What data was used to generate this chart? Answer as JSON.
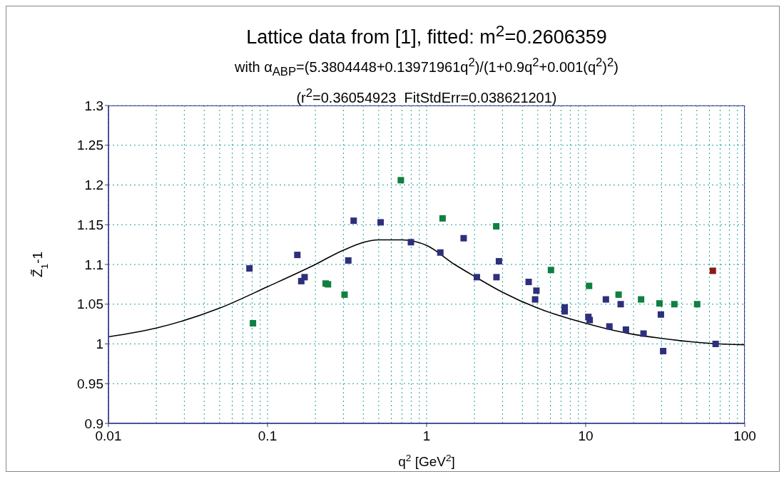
{
  "chart_data": {
    "type": "scatter",
    "title": "Lattice data from [1], fitted: m$^{2}$=0.2606359",
    "subtitle": "with α$_{ABP}$=(5.3804448+0.13971961q$^{2}$)/(1+0.9q$^{2}$+0.001(q$^{2}$)$^{2}$)",
    "annotations": [
      "(r$^{2}$=0.36054923  FitStdErr=0.038621201)"
    ],
    "xlabel": "q$^{2}$ [GeV$^{2}$]",
    "ylabel": "Z̃$_{1}$-1",
    "log": "x",
    "grid": true,
    "marker": "square",
    "xlim": [
      0.01,
      100
    ],
    "ylim": [
      0.9,
      1.3
    ],
    "xticks": [
      0.01,
      {
        "value": 0.02,
        "label": null
      },
      {
        "value": 0.03,
        "label": null
      },
      {
        "value": 0.04,
        "label": null
      },
      {
        "value": 0.05,
        "label": null
      },
      {
        "value": 0.06,
        "label": null
      },
      {
        "value": 0.07,
        "label": null
      },
      {
        "value": 0.08,
        "label": null
      },
      {
        "value": 0.09,
        "label": null
      },
      0.1,
      {
        "value": 0.2,
        "label": null
      },
      {
        "value": 0.3,
        "label": null
      },
      {
        "value": 0.4,
        "label": null
      },
      {
        "value": 0.5,
        "label": null
      },
      {
        "value": 0.6,
        "label": null
      },
      {
        "value": 0.7,
        "label": null
      },
      {
        "value": 0.8,
        "label": null
      },
      {
        "value": 0.9,
        "label": null
      },
      1,
      {
        "value": 2,
        "label": null
      },
      {
        "value": 3,
        "label": null
      },
      {
        "value": 4,
        "label": null
      },
      {
        "value": 5,
        "label": null
      },
      {
        "value": 6,
        "label": null
      },
      {
        "value": 7,
        "label": null
      },
      {
        "value": 8,
        "label": null
      },
      {
        "value": 9,
        "label": null
      },
      10,
      {
        "value": 20,
        "label": null
      },
      {
        "value": 30,
        "label": null
      },
      {
        "value": 40,
        "label": null
      },
      {
        "value": 50,
        "label": null
      },
      {
        "value": 60,
        "label": null
      },
      {
        "value": 70,
        "label": null
      },
      {
        "value": 80,
        "label": null
      },
      {
        "value": 90,
        "label": null
      },
      100
    ],
    "yticks": [
      0.9,
      0.95,
      1,
      1.05,
      1.1,
      1.15,
      1.2,
      1.25,
      1.3
    ],
    "series": [
      {
        "color": "#2e2f7c",
        "x": [
          0.077,
          0.154,
          0.163,
          0.171,
          0.348,
          0.322,
          0.514,
          0.797,
          1.22,
          1.71,
          2.07,
          2.75,
          2.85,
          4.38,
          4.9,
          4.81,
          7.38,
          7.38,
          10.4,
          10.6,
          13.4,
          16.6,
          14.1,
          17.9,
          23.1,
          29.7,
          30.7,
          65.6
        ],
        "values": [
          1.095,
          1.112,
          1.079,
          1.084,
          1.155,
          1.105,
          1.153,
          1.128,
          1.115,
          1.133,
          1.084,
          1.084,
          1.104,
          1.078,
          1.067,
          1.056,
          1.046,
          1.041,
          1.034,
          1.03,
          1.056,
          1.05,
          1.022,
          1.018,
          1.013,
          1.037,
          0.991,
          1.0
        ]
      },
      {
        "color": "#0f8040",
        "x": [
          0.081,
          0.232,
          0.24,
          0.305,
          0.689,
          1.26,
          2.74,
          6.05,
          10.5,
          16.1,
          22.3,
          29.1,
          36.1,
          50.2
        ],
        "values": [
          1.026,
          1.076,
          1.075,
          1.062,
          1.206,
          1.158,
          1.148,
          1.093,
          1.073,
          1.062,
          1.056,
          1.051,
          1.05,
          1.05
        ]
      },
      {
        "color": "#8b1a1a",
        "x": [
          63
        ],
        "values": [
          1.092
        ]
      },
      {
        "type": "line",
        "marker": "none",
        "color": "#000000",
        "x": [
          0.01,
          0.02,
          0.05,
          0.1,
          0.2,
          0.3,
          0.5,
          0.7,
          1,
          1.5,
          2,
          3,
          5,
          7,
          10,
          15,
          20,
          30,
          50,
          70,
          100
        ],
        "values": [
          1.009,
          1.02,
          1.045,
          1.072,
          1.1,
          1.118,
          1.131,
          1.131,
          1.124,
          1.1,
          1.085,
          1.065,
          1.045,
          1.035,
          1.026,
          1.017,
          1.012,
          1.007,
          1.002,
          1.0,
          0.999
        ]
      }
    ]
  }
}
